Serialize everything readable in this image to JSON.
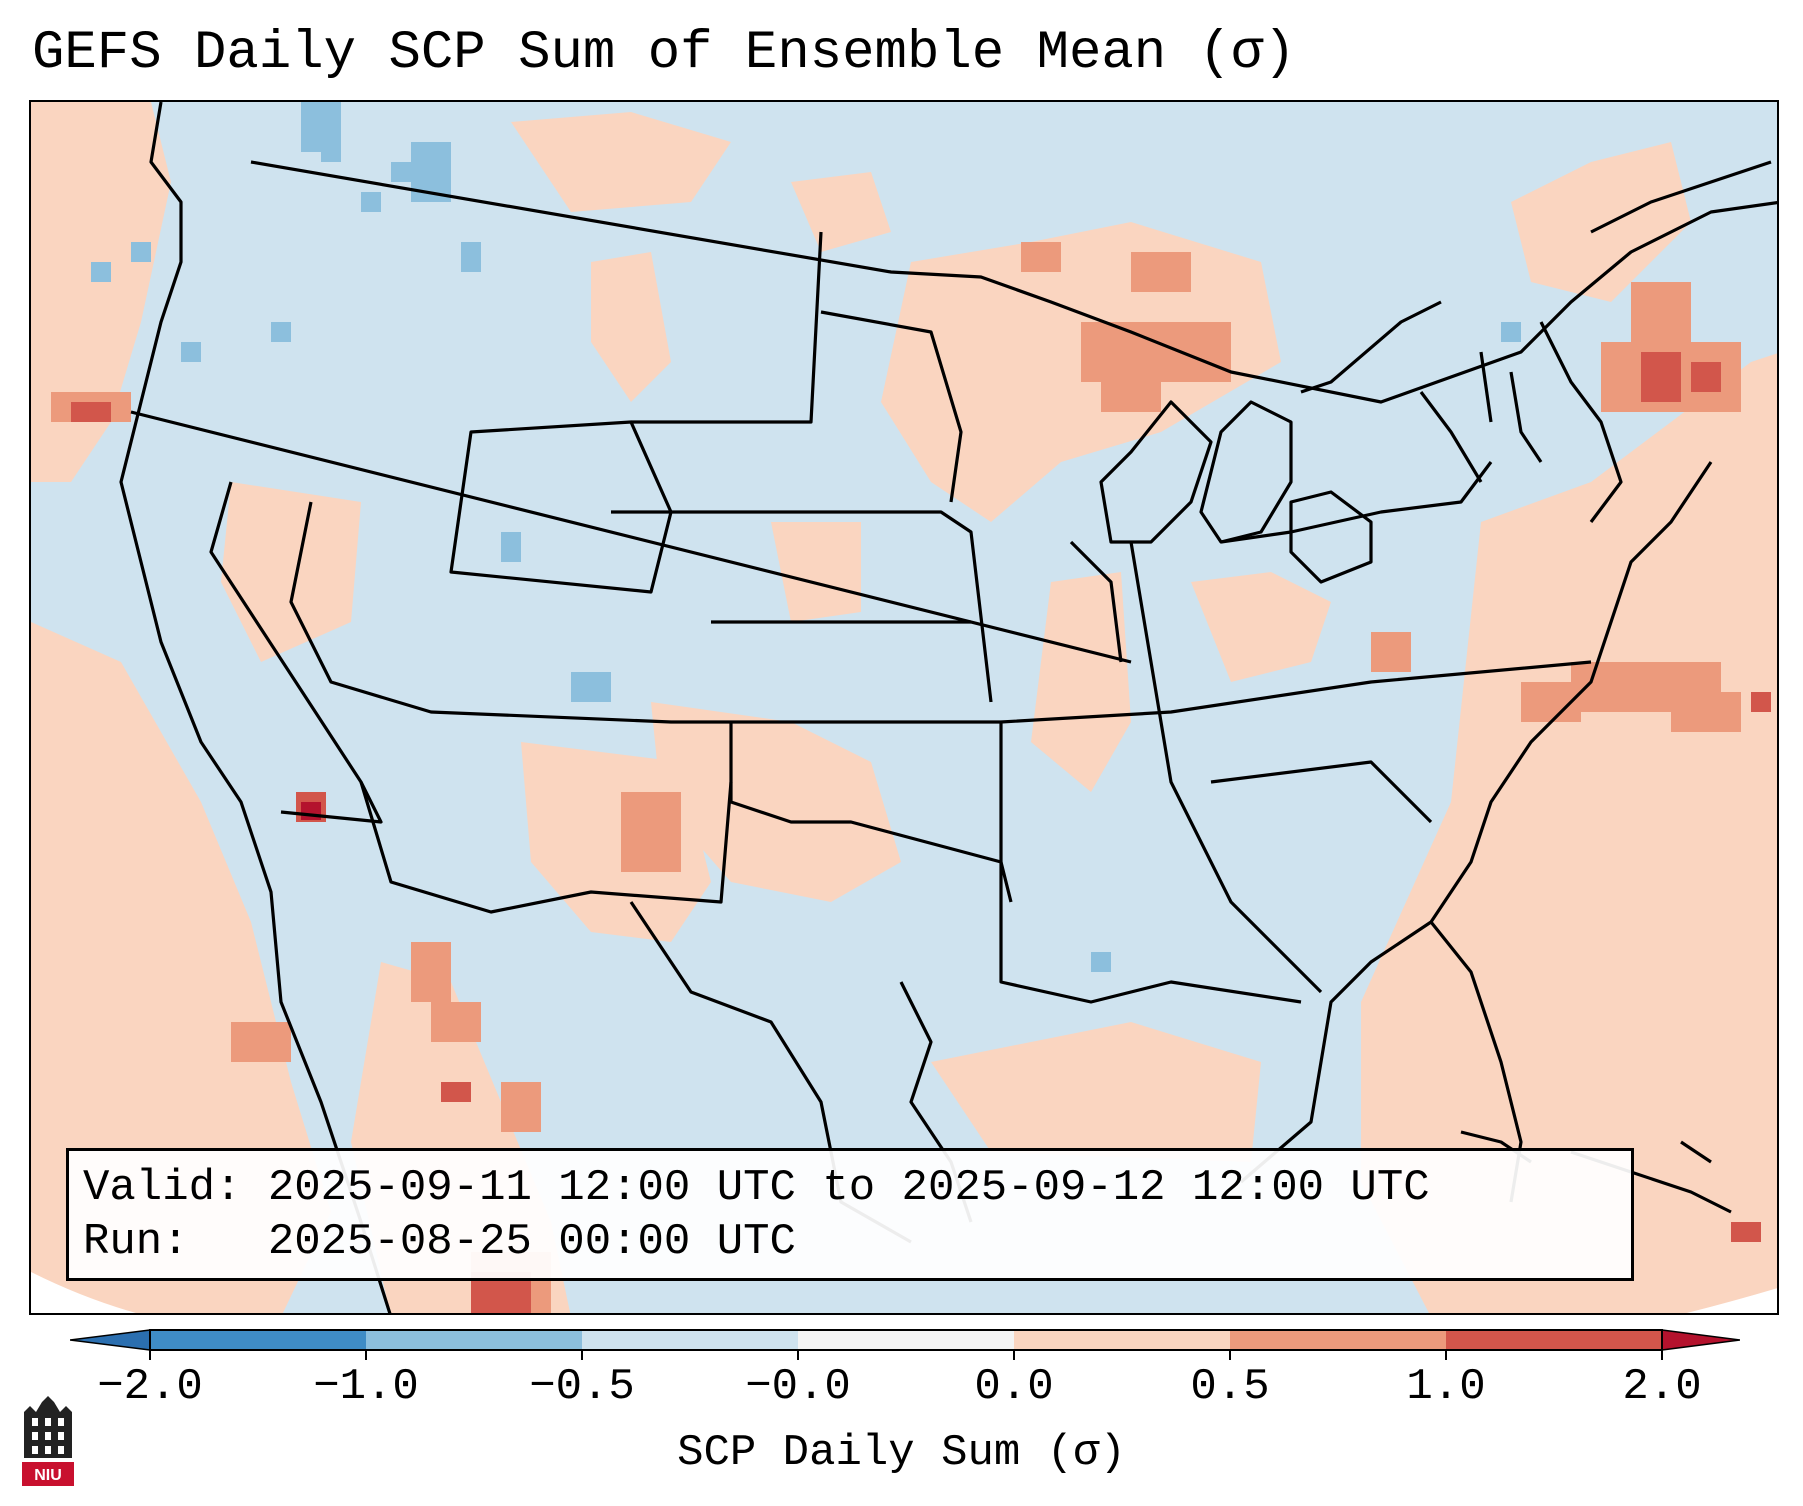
{
  "figure": {
    "title": "GEFS Daily SCP Sum of Ensemble Mean (σ)",
    "info": {
      "valid_label": "Valid:",
      "valid_value": "2025-09-11 12:00 UTC to 2025-09-12 12:00 UTC",
      "run_label": "Run:",
      "run_value": "2025-08-25 00:00 UTC"
    },
    "colorbar": {
      "label": "SCP Daily Sum (σ)",
      "ticks": [
        "−2.0",
        "−1.0",
        "−0.5",
        "−0.0",
        "0.0",
        "0.5",
        "1.0",
        "2.0"
      ],
      "bins": [
        {
          "from": -2.0,
          "to": -1.0,
          "color": "#3f8cc5"
        },
        {
          "from": -1.0,
          "to": -0.5,
          "color": "#8cbfdd"
        },
        {
          "from": -0.5,
          "to": -0.0,
          "color": "#cfe3ef"
        },
        {
          "from": -0.0,
          "to": 0.0,
          "color": "#f4f4f4"
        },
        {
          "from": 0.0,
          "to": 0.5,
          "color": "#fad5c0"
        },
        {
          "from": 0.5,
          "to": 1.0,
          "color": "#ec9a7c"
        },
        {
          "from": 1.0,
          "to": 2.0,
          "color": "#d2564b"
        }
      ],
      "extend_low_color": "#2b6fb0",
      "extend_high_color": "#b4122d"
    },
    "logo_text": "NIU"
  },
  "colors": {
    "background": "#cfe3ef",
    "positive_low": "#fad5c0",
    "positive_mid": "#ec9a7c",
    "positive_high": "#d2564b",
    "extreme_high": "#b4122d",
    "negative_mid": "#8cbfdd",
    "border": "#000000"
  }
}
